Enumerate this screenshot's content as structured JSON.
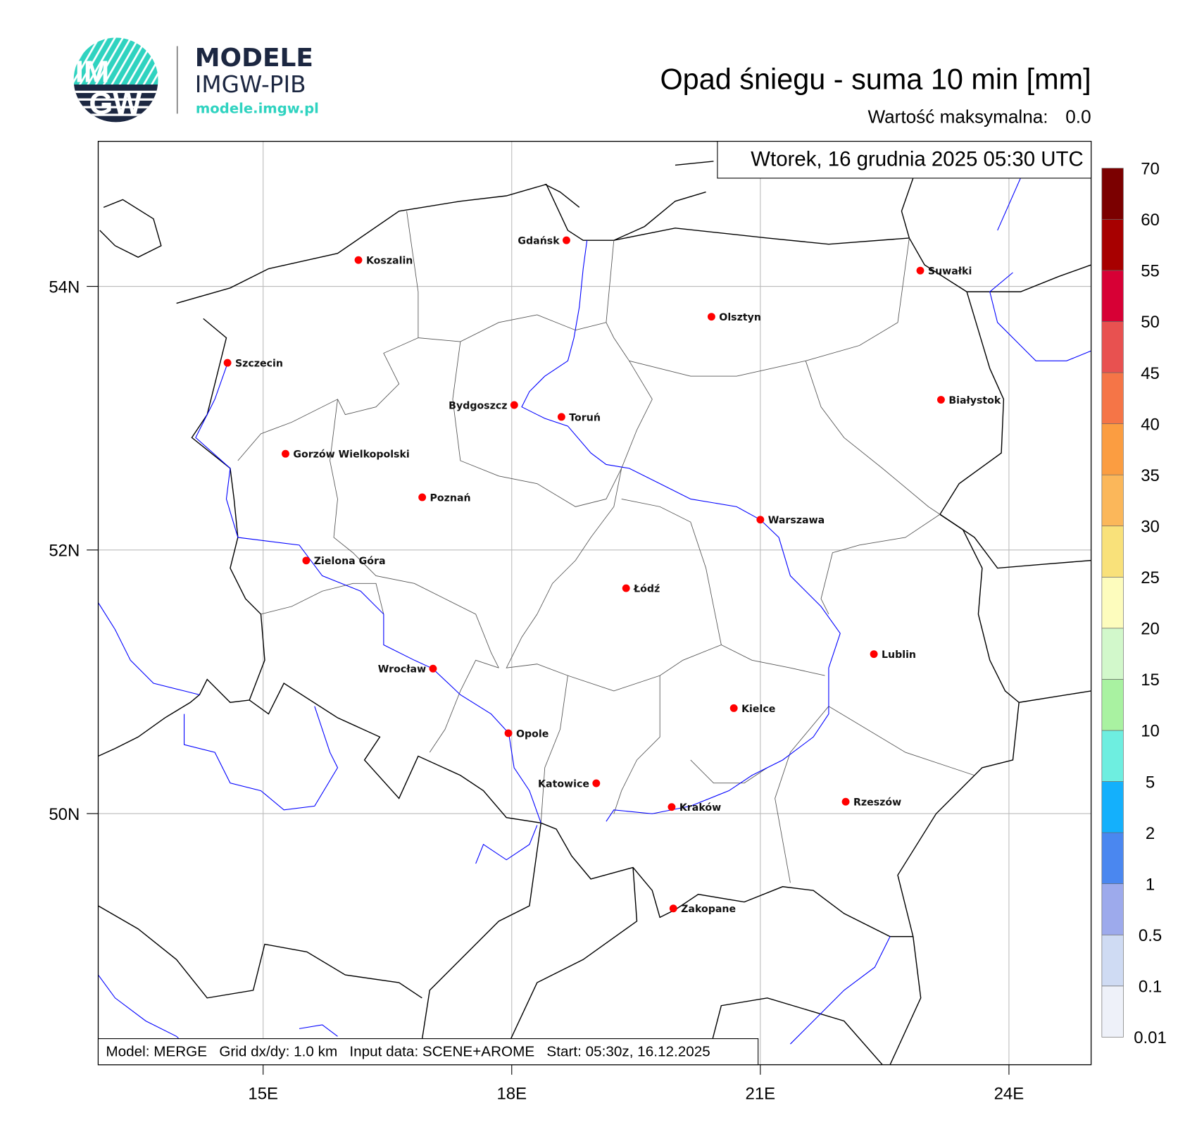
{
  "logo": {
    "badge_text_top": "IM",
    "badge_text_bottom": "GW",
    "brand": "MODELE",
    "org": "IMGW-PIB",
    "url": "modele.imgw.pl",
    "colors": {
      "teal": "#2fd3c0",
      "navy": "#1c2741"
    }
  },
  "header": {
    "title": "Opad śniegu - suma 10 min [mm]",
    "max_label": "Wartość maksymalna:",
    "max_value": "0.0"
  },
  "map": {
    "datetime": "Wtorek, 16 grudnia 2025 05:30 UTC",
    "info": "Model: MERGE   Grid dx/dy: 1.0 km   Input data: SCENE+AROME   Start: 05:30z, 16.12.2025",
    "lon_ticks": [
      {
        "value": 15,
        "label": "15E"
      },
      {
        "value": 18,
        "label": "18E"
      },
      {
        "value": 21,
        "label": "21E"
      },
      {
        "value": 24,
        "label": "24E"
      }
    ],
    "lat_ticks": [
      {
        "value": 54,
        "label": "54N"
      },
      {
        "value": 52,
        "label": "52N"
      },
      {
        "value": 50,
        "label": "50N"
      }
    ],
    "city_marker_color": "#ff0000",
    "cities": [
      {
        "name": "Gdańsk",
        "lon": 18.66,
        "lat": 54.35,
        "label_side": "left"
      },
      {
        "name": "Koszalin",
        "lon": 16.15,
        "lat": 54.2,
        "label_side": "right"
      },
      {
        "name": "Suwałki",
        "lon": 22.93,
        "lat": 54.12,
        "label_side": "right"
      },
      {
        "name": "Olsztyn",
        "lon": 20.41,
        "lat": 53.77,
        "label_side": "right"
      },
      {
        "name": "Szczecin",
        "lon": 14.57,
        "lat": 53.42,
        "label_side": "right"
      },
      {
        "name": "Białystok",
        "lon": 23.18,
        "lat": 53.14,
        "label_side": "right"
      },
      {
        "name": "Bydgoszcz",
        "lon": 18.03,
        "lat": 53.1,
        "label_side": "left"
      },
      {
        "name": "Toruń",
        "lon": 18.6,
        "lat": 53.01,
        "label_side": "right"
      },
      {
        "name": "Gorzów Wielkopolski",
        "lon": 15.27,
        "lat": 52.73,
        "label_side": "right"
      },
      {
        "name": "Poznań",
        "lon": 16.92,
        "lat": 52.4,
        "label_side": "right"
      },
      {
        "name": "Warszawa",
        "lon": 21.0,
        "lat": 52.23,
        "label_side": "right"
      },
      {
        "name": "Zielona Góra",
        "lon": 15.52,
        "lat": 51.92,
        "label_side": "right"
      },
      {
        "name": "Łódź",
        "lon": 19.38,
        "lat": 51.71,
        "label_side": "right"
      },
      {
        "name": "Lublin",
        "lon": 22.37,
        "lat": 51.21,
        "label_side": "right"
      },
      {
        "name": "Wrocław",
        "lon": 17.05,
        "lat": 51.1,
        "label_side": "left"
      },
      {
        "name": "Kielce",
        "lon": 20.68,
        "lat": 50.8,
        "label_side": "right"
      },
      {
        "name": "Opole",
        "lon": 17.96,
        "lat": 50.61,
        "label_side": "right"
      },
      {
        "name": "Katowice",
        "lon": 19.02,
        "lat": 50.23,
        "label_side": "left"
      },
      {
        "name": "Rzeszów",
        "lon": 22.03,
        "lat": 50.09,
        "label_side": "right"
      },
      {
        "name": "Kraków",
        "lon": 19.93,
        "lat": 50.05,
        "label_side": "right"
      },
      {
        "name": "Zakopane",
        "lon": 19.95,
        "lat": 49.28,
        "label_side": "right"
      }
    ]
  },
  "colorbar": {
    "labels": [
      "0.01",
      "0.1",
      "0.5",
      "1",
      "2",
      "5",
      "10",
      "15",
      "20",
      "25",
      "30",
      "35",
      "40",
      "45",
      "50",
      "55",
      "60",
      "70"
    ],
    "colors": [
      "#eef1f9",
      "#cfdbf3",
      "#9daaec",
      "#4a87f0",
      "#14b0fc",
      "#6eeee0",
      "#a9f2a1",
      "#d2f8cb",
      "#fdfcbd",
      "#f9e17a",
      "#fbb75a",
      "#fb9d41",
      "#f57547",
      "#e85150",
      "#d70035",
      "#a70000",
      "#7b0000"
    ]
  }
}
